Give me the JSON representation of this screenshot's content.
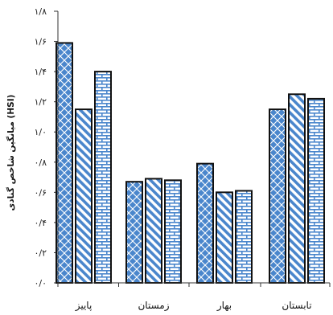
{
  "chart_data": {
    "type": "bar",
    "ylabel": "میانگین شاخص گنادی (HSI)",
    "categories": [
      "پاییز",
      "زمستان",
      "بهار",
      "تابستان"
    ],
    "series": [
      {
        "pattern": "dots",
        "values": [
          1.59,
          0.67,
          0.79,
          1.15
        ]
      },
      {
        "pattern": "diagonal",
        "values": [
          1.15,
          0.69,
          0.6,
          1.25
        ]
      },
      {
        "pattern": "brick",
        "values": [
          1.4,
          0.68,
          0.61,
          1.22
        ]
      }
    ],
    "ylim": [
      0,
      1.8
    ],
    "yticks": [
      0,
      0.2,
      0.4,
      0.6,
      0.8,
      1.0,
      1.2,
      1.4,
      1.6,
      1.8
    ],
    "ytick_labels": [
      "۰/۰",
      "۰/۲",
      "۰/۴",
      "۰/۶",
      "۰/۸",
      "۱/۰",
      "۱/۲",
      "۱/۴",
      "۱/۶",
      "۱/۸"
    ],
    "grid": false,
    "legend": "none"
  },
  "colors": {
    "fill": "#4a86cc",
    "stroke": "#111111",
    "axis": "#333333"
  }
}
